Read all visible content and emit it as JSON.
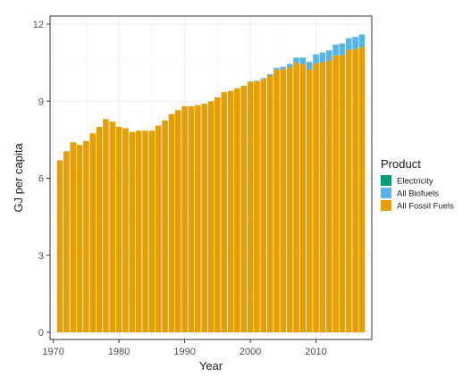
{
  "chart_data": {
    "type": "bar",
    "stacked": true,
    "xlabel": "Year",
    "ylabel": "GJ per capita",
    "xlim": [
      1969.5,
      2018.5
    ],
    "ylim": [
      0,
      12
    ],
    "x_ticks": [
      1970,
      1980,
      1990,
      2000,
      2010
    ],
    "y_ticks": [
      0,
      3,
      6,
      9,
      12
    ],
    "grid": true,
    "legend": {
      "title": "Product",
      "position": "right"
    },
    "x": [
      1971,
      1972,
      1973,
      1974,
      1975,
      1976,
      1977,
      1978,
      1979,
      1980,
      1981,
      1982,
      1983,
      1984,
      1985,
      1986,
      1987,
      1988,
      1989,
      1990,
      1991,
      1992,
      1993,
      1994,
      1995,
      1996,
      1997,
      1998,
      1999,
      2000,
      2001,
      2002,
      2003,
      2004,
      2005,
      2006,
      2007,
      2008,
      2009,
      2010,
      2011,
      2012,
      2013,
      2014,
      2015,
      2016,
      2017
    ],
    "series": [
      {
        "name": "Electricity",
        "color": "#009E73",
        "values": [
          0,
          0,
          0,
          0,
          0,
          0,
          0,
          0,
          0,
          0,
          0,
          0,
          0,
          0,
          0,
          0,
          0,
          0,
          0,
          0,
          0,
          0,
          0,
          0,
          0,
          0,
          0,
          0,
          0,
          0,
          0,
          0,
          0,
          0,
          0,
          0,
          0,
          0,
          0,
          0,
          0,
          0,
          0,
          0,
          0,
          0,
          0.01
        ]
      },
      {
        "name": "All Biofuels",
        "color": "#56B4E9",
        "values": [
          0,
          0,
          0,
          0,
          0,
          0,
          0,
          0,
          0,
          0,
          0,
          0,
          0,
          0,
          0,
          0,
          0,
          0,
          0,
          0,
          0,
          0,
          0,
          0,
          0,
          0,
          0,
          0,
          0,
          0.02,
          0.02,
          0.03,
          0.05,
          0.07,
          0.09,
          0.12,
          0.2,
          0.27,
          0.3,
          0.35,
          0.38,
          0.4,
          0.43,
          0.45,
          0.45,
          0.47,
          0.47
        ]
      },
      {
        "name": "All Fossil Fuels",
        "color": "#E69F00",
        "values": [
          6.7,
          7.05,
          7.4,
          7.3,
          7.45,
          7.75,
          8.0,
          8.3,
          8.2,
          8.0,
          7.95,
          7.8,
          7.85,
          7.85,
          7.85,
          8.05,
          8.25,
          8.5,
          8.65,
          8.8,
          8.8,
          8.85,
          8.9,
          9.0,
          9.15,
          9.35,
          9.4,
          9.5,
          9.6,
          9.75,
          9.78,
          9.87,
          10.0,
          10.23,
          10.25,
          10.33,
          10.5,
          10.43,
          10.23,
          10.47,
          10.52,
          10.58,
          10.77,
          10.8,
          11.0,
          11.03,
          11.12
        ]
      }
    ]
  }
}
